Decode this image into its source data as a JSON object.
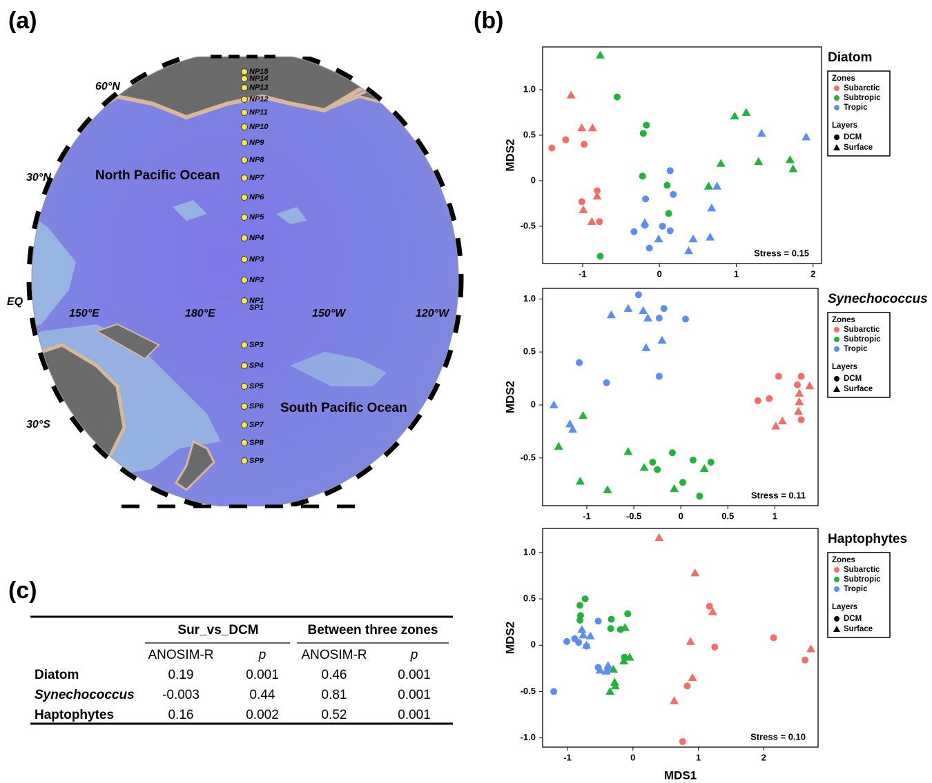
{
  "panel_labels": [
    "(a)",
    "(b)",
    "(c)"
  ],
  "map": {
    "stations": [
      "NP15",
      "NP14",
      "NP13",
      "NP12",
      "NP11",
      "NP10",
      "NP9",
      "NP8",
      "NP7",
      "NP6",
      "NP5",
      "NP4",
      "NP3",
      "NP2",
      "NP1",
      "SP1",
      "SP3",
      "SP4",
      "SP5",
      "SP6",
      "SP7",
      "SP8",
      "SP9"
    ],
    "lat_labels": [
      "60°N",
      "30°N",
      "EQ",
      "30°S"
    ],
    "lon_labels": [
      "150°E",
      "180°E",
      "150°W",
      "120°W"
    ],
    "ocean_labels": [
      "North Pacific Ocean",
      "South Pacific Ocean"
    ]
  },
  "chart_data": [
    {
      "type": "scatter",
      "title": "Diatom",
      "ylabel": "MDS2",
      "annotation": "Stress = 0.15",
      "xlim": [
        -1.52,
        2.11
      ],
      "ylim": [
        -0.91,
        1.47
      ],
      "xticks": [
        -1,
        0,
        1,
        2
      ],
      "yticks": [
        {
          "value": 1,
          "label": "1.0"
        },
        0.5,
        0,
        -0.5
      ],
      "zones_title": "Zones",
      "layers_title": "Layers",
      "zones": [
        {
          "name": "Subarctic",
          "color": "#f07068"
        },
        {
          "name": "Subtropic",
          "color": "#22b33a"
        },
        {
          "name": "Tropic",
          "color": "#5b8ef0"
        }
      ],
      "layers": [
        {
          "name": "DCM",
          "marker": "circle"
        },
        {
          "name": "Surface",
          "marker": "triangle"
        }
      ],
      "series": [
        {
          "zone": 0,
          "layer": 0,
          "x": [
            -1.4,
            -1.22,
            -0.98,
            -0.81,
            -1.01,
            -0.78
          ],
          "y": [
            0.36,
            0.45,
            0.4,
            -0.11,
            -0.23,
            -0.45
          ]
        },
        {
          "zone": 0,
          "layer": 1,
          "x": [
            -1.15,
            -1.01,
            -0.87,
            -0.81,
            -0.99,
            -0.88
          ],
          "y": [
            0.94,
            0.58,
            0.58,
            -0.17,
            -0.32,
            -0.45
          ]
        },
        {
          "zone": 1,
          "layer": 0,
          "x": [
            -0.55,
            -0.17,
            -0.21,
            -0.22,
            0.1,
            0.12,
            -0.77
          ],
          "y": [
            0.92,
            0.61,
            0.52,
            0.05,
            -0.05,
            -0.36,
            -0.83
          ]
        },
        {
          "zone": 1,
          "layer": 1,
          "x": [
            -0.77,
            0.98,
            1.13,
            0.8,
            1.29,
            1.7,
            1.74,
            0.64
          ],
          "y": [
            1.38,
            0.71,
            0.75,
            0.19,
            0.21,
            0.23,
            0.13,
            -0.06
          ]
        },
        {
          "zone": 2,
          "layer": 0,
          "x": [
            0.14,
            0.18,
            -0.18,
            -0.19,
            0.04,
            0.14,
            -0.33,
            -0.13
          ],
          "y": [
            0.11,
            -0.15,
            -0.2,
            -0.49,
            -0.5,
            -0.55,
            -0.56,
            -0.74
          ]
        },
        {
          "zone": 2,
          "layer": 1,
          "x": [
            1.33,
            1.91,
            0.75,
            0.68,
            -0.19,
            -0.01,
            0.44,
            0.66,
            0.38
          ],
          "y": [
            0.52,
            0.48,
            -0.06,
            -0.3,
            -0.46,
            -0.64,
            -0.64,
            -0.62,
            -0.77
          ]
        }
      ]
    },
    {
      "type": "scatter",
      "title": "Synechococcus",
      "ylabel": "MDS2",
      "annotation": "Stress = 0.11",
      "xlim": [
        -1.47,
        1.46
      ],
      "ylim": [
        -0.95,
        1.1
      ],
      "xticks": [
        -1,
        -0.5,
        0,
        0.5,
        1
      ],
      "yticks": [
        {
          "value": 1,
          "label": "1.0"
        },
        0.5,
        0,
        -0.5
      ],
      "zones_title": "Zones",
      "layers_title": "Layers",
      "zones": [
        {
          "name": "Subarctic",
          "color": "#f07068"
        },
        {
          "name": "Subtropic",
          "color": "#22b33a"
        },
        {
          "name": "Tropic",
          "color": "#5b8ef0"
        }
      ],
      "layers": [
        {
          "name": "DCM",
          "marker": "circle"
        },
        {
          "name": "Surface",
          "marker": "triangle"
        }
      ],
      "series": [
        {
          "zone": 0,
          "layer": 0,
          "x": [
            1.04,
            1.28,
            0.82,
            0.94,
            1.24,
            1.28
          ],
          "y": [
            0.27,
            0.27,
            0.04,
            0.06,
            0.19,
            -0.14
          ]
        },
        {
          "zone": 0,
          "layer": 1,
          "x": [
            1.37,
            1.26,
            1.26,
            1.25,
            1.08,
            1.01
          ],
          "y": [
            0.18,
            0.11,
            0.03,
            -0.06,
            -0.15,
            -0.2
          ]
        },
        {
          "zone": 1,
          "layer": 0,
          "x": [
            -0.3,
            -0.09,
            -0.25,
            0.13,
            0.02,
            0.32,
            0.2
          ],
          "y": [
            -0.54,
            -0.45,
            -0.61,
            -0.52,
            -0.73,
            -0.54,
            -0.86
          ]
        },
        {
          "zone": 1,
          "layer": 1,
          "x": [
            -1.04,
            -1.3,
            -0.56,
            -0.39,
            -1.07,
            -0.78,
            -0.07,
            0.25
          ],
          "y": [
            -0.1,
            -0.39,
            -0.44,
            -0.59,
            -0.72,
            -0.8,
            -0.79,
            -0.6
          ]
        },
        {
          "zone": 2,
          "layer": 0,
          "x": [
            -0.45,
            -0.18,
            -0.23,
            0.05,
            -1.08,
            -0.79,
            -0.23
          ],
          "y": [
            1.04,
            0.91,
            0.82,
            0.81,
            0.4,
            0.21,
            0.27
          ]
        },
        {
          "zone": 2,
          "layer": 1,
          "x": [
            -0.56,
            -0.74,
            -0.4,
            -0.35,
            -0.2,
            -0.37,
            -1.35,
            -1.18,
            -1.15
          ],
          "y": [
            0.91,
            0.85,
            0.89,
            0.82,
            0.61,
            0.54,
            0.0,
            -0.18,
            -0.23
          ]
        }
      ]
    },
    {
      "type": "scatter",
      "title": "Haptophytes",
      "xlabel": "MDS1",
      "ylabel": "MDS2",
      "annotation": "Stress = 0.10",
      "xlim": [
        -1.38,
        2.83
      ],
      "ylim": [
        -1.1,
        1.26
      ],
      "xticks": [
        -1,
        0,
        1,
        2
      ],
      "yticks": [
        {
          "value": 1,
          "label": "1.0"
        },
        0.5,
        0,
        -0.5,
        {
          "value": -1,
          "label": "-1.0"
        }
      ],
      "zones_title": "Zones",
      "layers_title": "Layers",
      "zones": [
        {
          "name": "Subarctic",
          "color": "#f07068"
        },
        {
          "name": "Subtropic",
          "color": "#22b33a"
        },
        {
          "name": "Tropic",
          "color": "#5b8ef0"
        }
      ],
      "layers": [
        {
          "name": "DCM",
          "marker": "circle"
        },
        {
          "name": "Surface",
          "marker": "triangle"
        }
      ],
      "series": [
        {
          "zone": 0,
          "layer": 0,
          "x": [
            1.17,
            1.25,
            2.15,
            2.63,
            0.83,
            0.76
          ],
          "y": [
            0.42,
            -0.02,
            0.08,
            -0.16,
            -0.44,
            -1.04
          ]
        },
        {
          "zone": 0,
          "layer": 1,
          "x": [
            0.4,
            0.95,
            1.22,
            0.88,
            0.91,
            0.63,
            2.72
          ],
          "y": [
            1.16,
            0.78,
            0.36,
            0.04,
            -0.35,
            -0.6,
            -0.04
          ]
        },
        {
          "zone": 1,
          "layer": 0,
          "x": [
            -0.73,
            -0.81,
            -0.8,
            -0.81,
            -0.33,
            -0.08,
            -0.34,
            -0.19,
            -0.13
          ],
          "y": [
            0.5,
            0.43,
            0.32,
            0.27,
            0.28,
            0.34,
            0.18,
            0.17,
            -0.13
          ]
        },
        {
          "zone": 1,
          "layer": 1,
          "x": [
            -0.12,
            -0.05,
            -0.14,
            -0.3,
            -0.28,
            -0.27,
            -0.35
          ],
          "y": [
            0.19,
            -0.13,
            -0.17,
            -0.26,
            -0.4,
            -0.44,
            -0.5
          ]
        },
        {
          "zone": 2,
          "layer": 0,
          "x": [
            -0.53,
            -0.89,
            -1.01,
            -0.83,
            -0.71,
            -0.53,
            -0.39,
            -1.21
          ],
          "y": [
            0.26,
            0.07,
            0.04,
            0.03,
            -0.01,
            -0.24,
            -0.28,
            -0.5
          ]
        },
        {
          "zone": 2,
          "layer": 1,
          "x": [
            -0.78,
            -0.76,
            -0.65,
            -0.71,
            -0.5,
            -0.38,
            -0.41
          ],
          "y": [
            0.17,
            0.11,
            0.1,
            0.0,
            -0.27,
            -0.22,
            -0.28
          ]
        }
      ]
    }
  ],
  "table": {
    "group_headers": [
      "Sur_vs_DCM",
      "Between three zones"
    ],
    "column_headers": [
      "ANOSIM-R",
      "p",
      "ANOSIM-R",
      "p"
    ],
    "rows": [
      [
        "Diatom",
        "0.19",
        "0.001",
        "0.46",
        "0.001"
      ],
      [
        "Synechococcus",
        "-0.003",
        "0.44",
        "0.81",
        "0.001"
      ],
      [
        "Haptophytes",
        "0.16",
        "0.002",
        "0.52",
        "0.001"
      ]
    ]
  }
}
